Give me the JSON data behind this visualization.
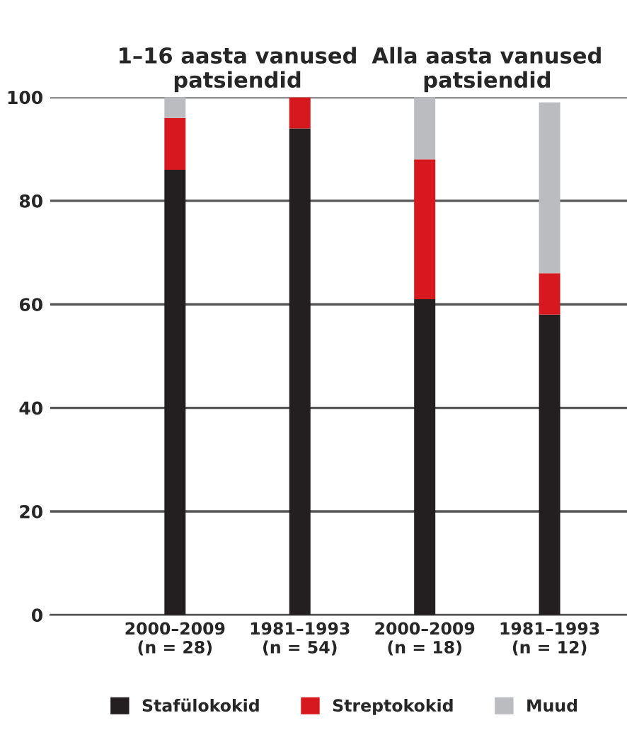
{
  "chart_data": {
    "type": "bar",
    "stacked": true,
    "categories": [
      "2000–2009\n(n = 28)",
      "1981–1993\n(n = 54)",
      "2000–2009\n(n = 18)",
      "1981–1993\n(n = 12)"
    ],
    "series": [
      {
        "name": "Stafülokokid",
        "color": "#231f20",
        "values": [
          86,
          94,
          61,
          58
        ]
      },
      {
        "name": "Streptokokid",
        "color": "#d7191f",
        "values": [
          10,
          6,
          27,
          8
        ]
      },
      {
        "name": "Muud",
        "color": "#bbbcbf",
        "values": [
          4,
          null,
          12,
          33
        ]
      }
    ],
    "annotations": [
      "1–16 aasta vanused\npatsiendid",
      "Alla aasta vanused\npatsiendid"
    ],
    "ylim": [
      0,
      100
    ],
    "yticks": [
      0,
      20,
      40,
      60,
      80,
      100
    ],
    "grid": "y",
    "legend": "bottom"
  }
}
